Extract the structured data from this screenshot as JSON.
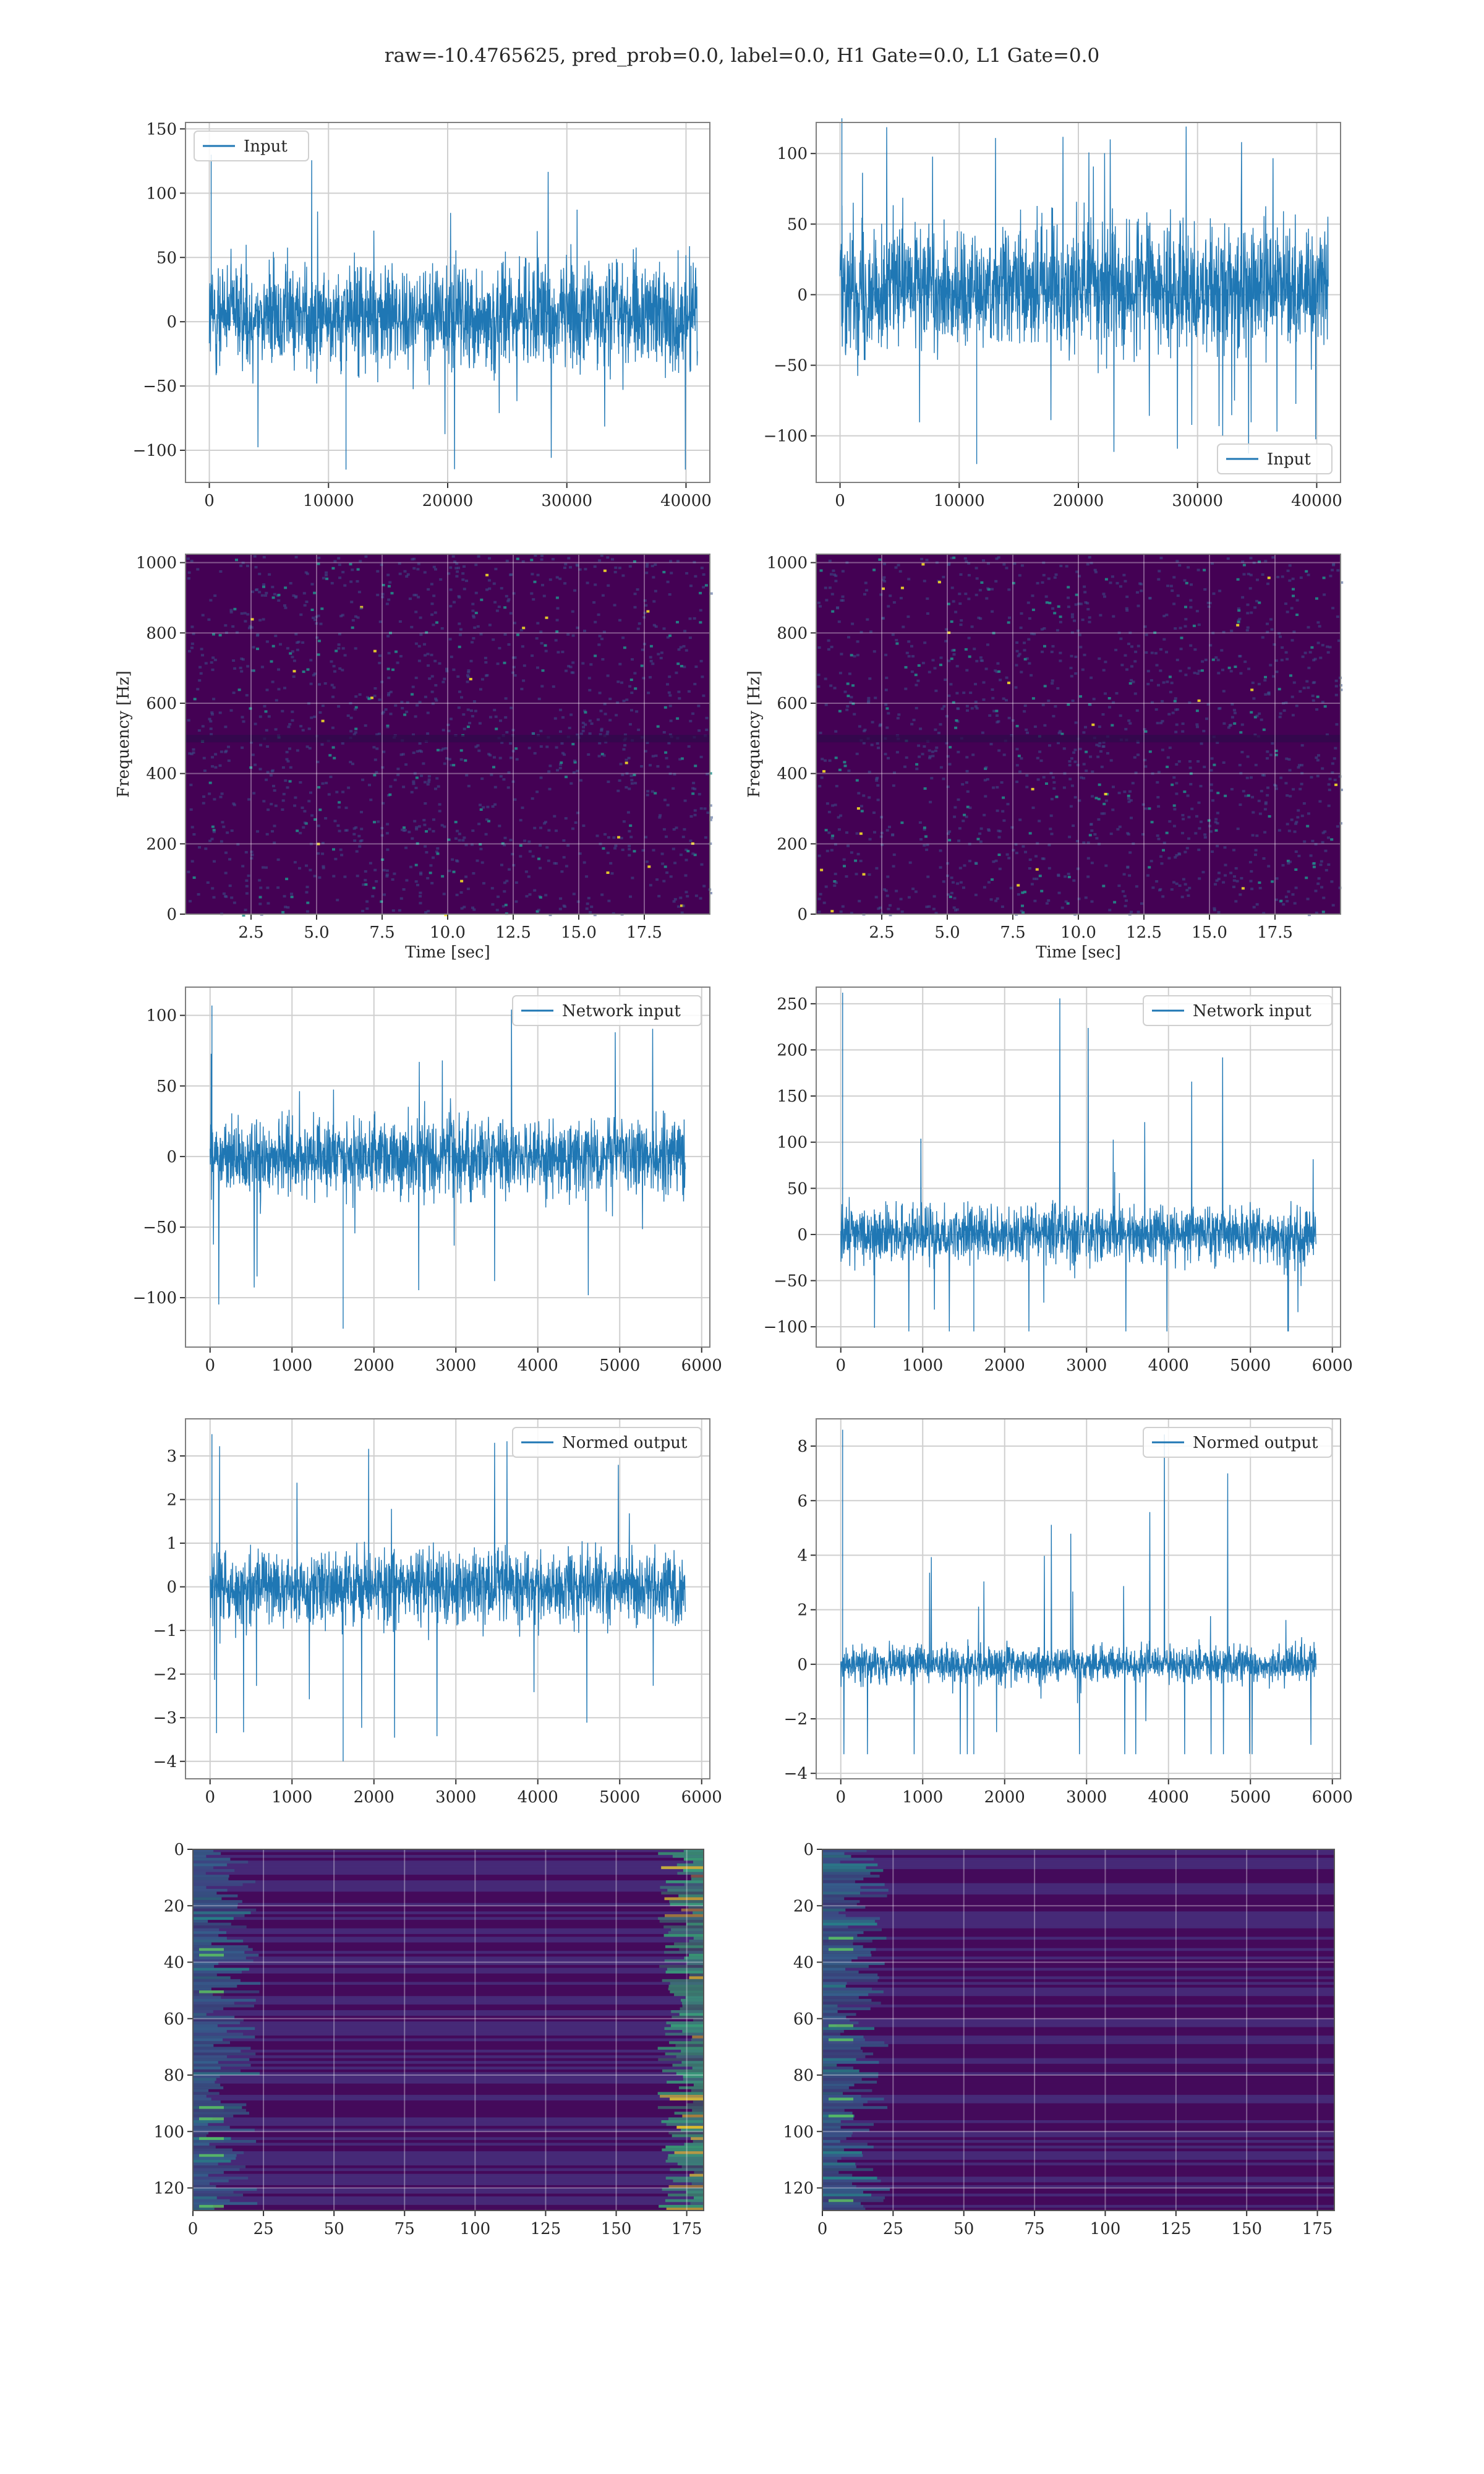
{
  "figure": {
    "suptitle": "raw=-10.4765625, pred_prob=0.0, label=0.0, H1 Gate=0.0, L1 Gate=0.0"
  },
  "colors": {
    "line": "#1f77b4",
    "grid": "#cfcfcf",
    "axes_edge": "#808080",
    "viridis_low": "#440154",
    "viridis_mid": "#21918c",
    "viridis_high": "#fde725"
  },
  "chart_data": [
    {
      "id": "input-h1",
      "type": "line",
      "series": [
        {
          "name": "Input",
          "length": 40960,
          "typical_range": [
            -70,
            80
          ],
          "max": 130,
          "min": -115
        }
      ],
      "xticks": [
        "0",
        "10000",
        "20000",
        "30000",
        "40000"
      ],
      "yticks": [
        "150",
        "100",
        "50",
        "0",
        "−50",
        "−100"
      ],
      "xlim": [
        -2000,
        42000
      ],
      "ylim": [
        -125,
        155
      ],
      "legend": "upper left",
      "grid": true
    },
    {
      "id": "input-l1",
      "type": "line",
      "series": [
        {
          "name": "Input",
          "length": 40960,
          "typical_range": [
            -75,
            85
          ],
          "max": 125,
          "min": -120
        }
      ],
      "xticks": [
        "0",
        "10000",
        "20000",
        "30000",
        "40000"
      ],
      "yticks": [
        "100",
        "50",
        "0",
        "−50",
        "−100"
      ],
      "xlim": [
        -2000,
        42000
      ],
      "ylim": [
        -133,
        122
      ],
      "legend": "lower right",
      "grid": true
    },
    {
      "id": "spectrogram-h1",
      "type": "heatmap",
      "xlabel": "Time [sec]",
      "ylabel": "Frequency [Hz]",
      "xticks": [
        "2.5",
        "5.0",
        "7.5",
        "10.0",
        "12.5",
        "15.0",
        "17.5"
      ],
      "yticks": [
        "1000",
        "800",
        "600",
        "400",
        "200",
        "0"
      ],
      "xlim": [
        0,
        20
      ],
      "ylim": [
        0,
        1024
      ],
      "grid": true
    },
    {
      "id": "spectrogram-l1",
      "type": "heatmap",
      "xlabel": "Time [sec]",
      "ylabel": "Frequency [Hz]",
      "xticks": [
        "2.5",
        "5.0",
        "7.5",
        "10.0",
        "12.5",
        "15.0",
        "17.5"
      ],
      "yticks": [
        "1000",
        "800",
        "600",
        "400",
        "200",
        "0"
      ],
      "xlim": [
        0,
        20
      ],
      "ylim": [
        0,
        1024
      ],
      "grid": true
    },
    {
      "id": "network-input-h1",
      "type": "line",
      "series": [
        {
          "name": "Network input",
          "length": 5800,
          "typical_range": [
            -50,
            50
          ],
          "max": 107,
          "min": -122
        }
      ],
      "xticks": [
        "0",
        "1000",
        "2000",
        "3000",
        "4000",
        "5000",
        "6000"
      ],
      "yticks": [
        "100",
        "50",
        "0",
        "−50",
        "−100"
      ],
      "xlim": [
        -300,
        6100
      ],
      "ylim": [
        -135,
        120
      ],
      "legend": "upper right",
      "grid": true
    },
    {
      "id": "network-input-l1",
      "type": "line",
      "series": [
        {
          "name": "Network input",
          "length": 5800,
          "typical_range": [
            -55,
            55
          ],
          "max": 262,
          "min": -105
        }
      ],
      "xticks": [
        "0",
        "1000",
        "2000",
        "3000",
        "4000",
        "5000",
        "6000"
      ],
      "yticks": [
        "250",
        "200",
        "150",
        "100",
        "50",
        "0",
        "−50",
        "−100"
      ],
      "xlim": [
        -300,
        6100
      ],
      "ylim": [
        -122,
        268
      ],
      "legend": "upper right",
      "grid": true
    },
    {
      "id": "normed-output-h1",
      "type": "line",
      "series": [
        {
          "name": "Normed output",
          "length": 5800,
          "typical_range": [
            -1.5,
            1.5
          ],
          "max": 3.5,
          "min": -4.0
        }
      ],
      "xticks": [
        "0",
        "1000",
        "2000",
        "3000",
        "4000",
        "5000",
        "6000"
      ],
      "yticks": [
        "3",
        "2",
        "1",
        "0",
        "−1",
        "−2",
        "−3",
        "−4"
      ],
      "xlim": [
        -300,
        6100
      ],
      "ylim": [
        -4.4,
        3.85
      ],
      "legend": "upper right",
      "grid": true
    },
    {
      "id": "normed-output-l1",
      "type": "line",
      "series": [
        {
          "name": "Normed output",
          "length": 5800,
          "typical_range": [
            -1.2,
            1.2
          ],
          "max": 8.6,
          "min": -3.3
        }
      ],
      "xticks": [
        "0",
        "1000",
        "2000",
        "3000",
        "4000",
        "5000",
        "6000"
      ],
      "yticks": [
        "8",
        "6",
        "4",
        "2",
        "0",
        "−2",
        "−4"
      ],
      "xlim": [
        -300,
        6100
      ],
      "ylim": [
        -4.2,
        9.0
      ],
      "legend": "upper right",
      "grid": true
    },
    {
      "id": "features-h1",
      "type": "heatmap",
      "xticks": [
        "0",
        "25",
        "50",
        "75",
        "100",
        "125",
        "150",
        "175"
      ],
      "yticks": [
        "0",
        "20",
        "40",
        "60",
        "80",
        "100",
        "120"
      ],
      "xlim": [
        0,
        181
      ],
      "ylim": [
        128,
        0
      ],
      "rows": 128,
      "cols": 181,
      "bright_regions": "left and right edges",
      "grid": true
    },
    {
      "id": "features-l1",
      "type": "heatmap",
      "xticks": [
        "0",
        "25",
        "50",
        "75",
        "100",
        "125",
        "150",
        "175"
      ],
      "yticks": [
        "0",
        "20",
        "40",
        "60",
        "80",
        "100",
        "120"
      ],
      "xlim": [
        0,
        181
      ],
      "ylim": [
        128,
        0
      ],
      "rows": 128,
      "cols": 181,
      "bright_regions": "left edge",
      "grid": true
    }
  ]
}
